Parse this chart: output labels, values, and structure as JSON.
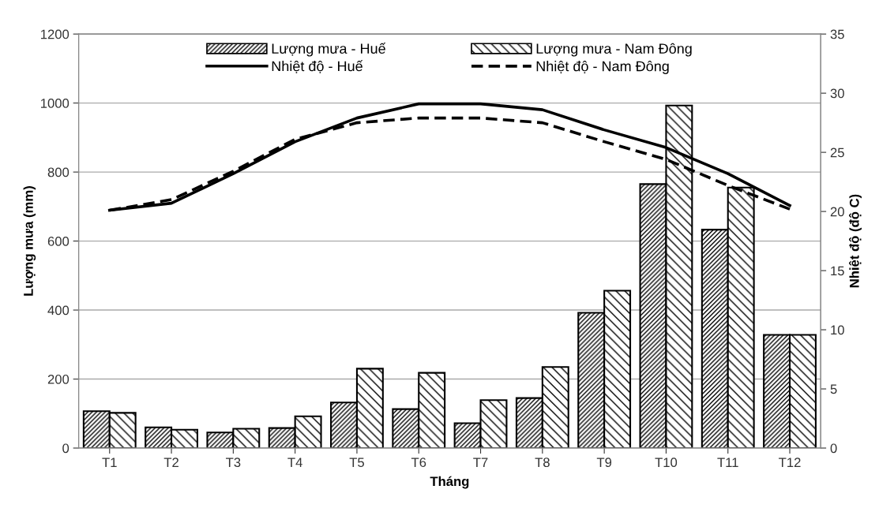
{
  "chart_data": {
    "type": "bar",
    "xlabel": "Tháng",
    "ylabel": "Lượng mưa (mm)",
    "y2label": "Nhiệt độ (độ C)",
    "categories": [
      "T1",
      "T2",
      "T3",
      "T4",
      "T5",
      "T6",
      "T7",
      "T8",
      "T9",
      "T10",
      "T11",
      "T12"
    ],
    "series": [
      {
        "name": "Lượng mưa - Huế",
        "color": "#000000",
        "values": [
          107,
          60,
          45,
          58,
          132,
          113,
          72,
          145,
          392,
          765,
          633,
          328
        ]
      },
      {
        "name": "Lượng mưa - Nam Đông",
        "color": "#000000",
        "values": [
          102,
          53,
          56,
          92,
          230,
          218,
          139,
          235,
          456,
          993,
          755,
          328
        ]
      },
      {
        "name": "Nhiệt độ - Huế",
        "type": "line",
        "axis": "y2",
        "line_style": "solid",
        "color": "#000000",
        "values": [
          20.1,
          20.7,
          23.2,
          25.9,
          27.9,
          29.1,
          29.1,
          28.6,
          26.9,
          25.4,
          23.2,
          20.5
        ]
      },
      {
        "name": "Nhiệt độ - Nam Đông",
        "type": "line",
        "axis": "y2",
        "line_style": "dashed",
        "color": "#000000",
        "values": [
          20.1,
          21.0,
          23.4,
          26.1,
          27.5,
          27.9,
          27.9,
          27.5,
          25.9,
          24.4,
          22.2,
          20.2
        ]
      }
    ],
    "ylim": [
      0,
      1200
    ],
    "yticks": [
      0,
      200,
      400,
      600,
      800,
      1000,
      1200
    ],
    "y2lim": [
      0,
      35
    ],
    "y2ticks": [
      0,
      5,
      10,
      15,
      20,
      25,
      30,
      35
    ],
    "grid": "y",
    "legend": "top",
    "marker": "none"
  }
}
